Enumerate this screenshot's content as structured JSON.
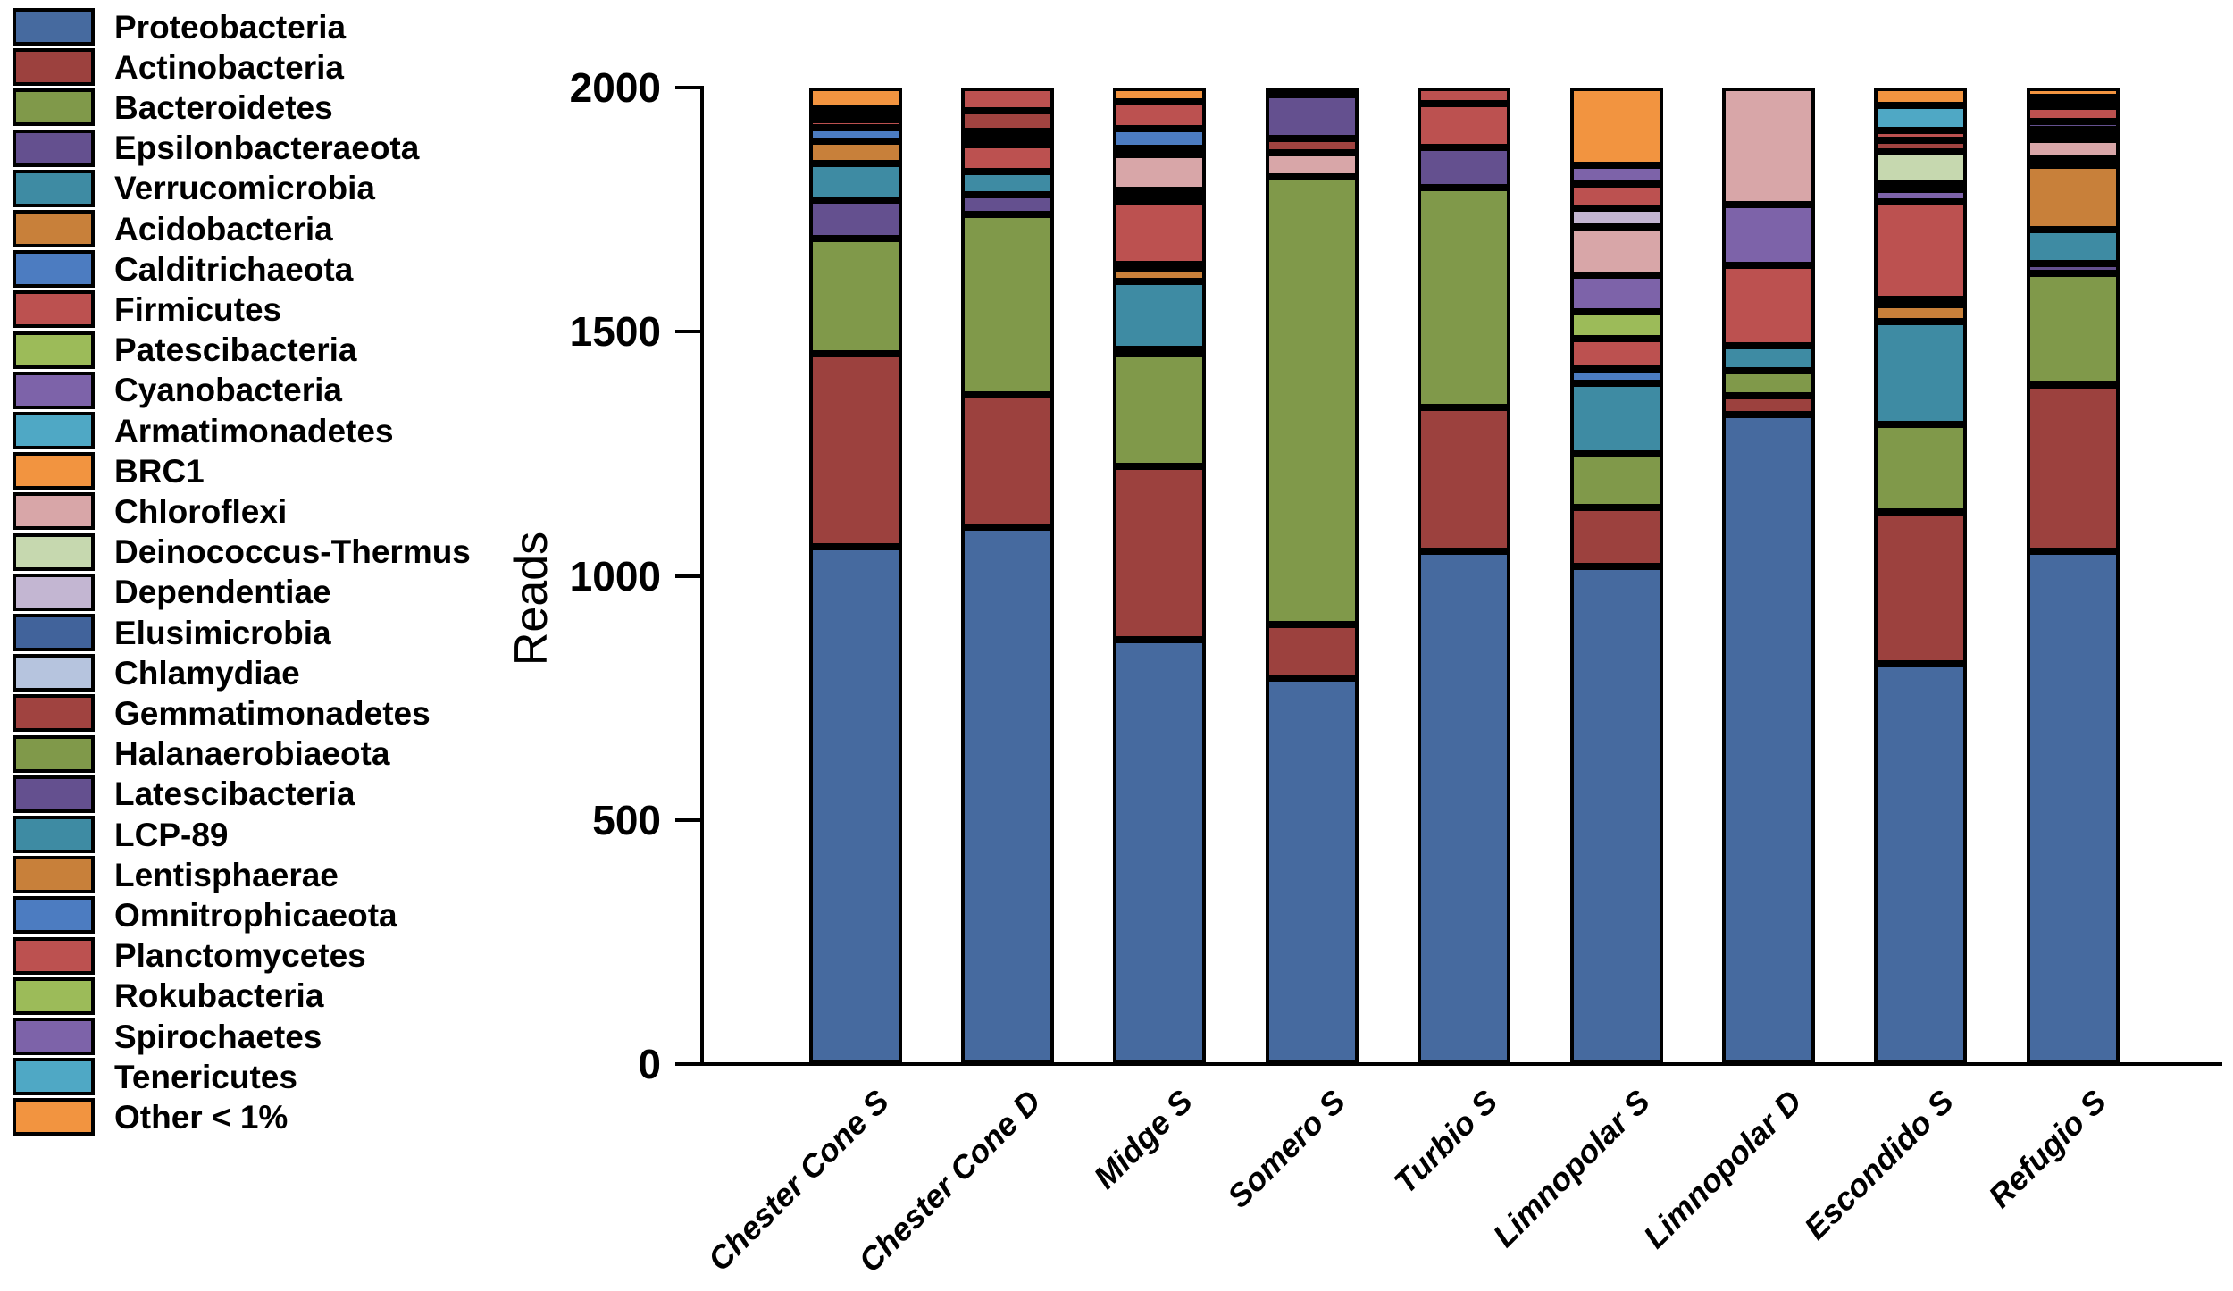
{
  "chart_data": {
    "type": "bar",
    "subtype": "stacked-vertical",
    "title": "",
    "xlabel": "",
    "ylabel": "Reads",
    "ylim": [
      0,
      2000
    ],
    "yticks": [
      0,
      500,
      1000,
      1500,
      2000
    ],
    "grid": false,
    "legend_position": "left",
    "bar_total": 2000,
    "categories": [
      "Chester Cone S",
      "Chester Cone D",
      "Midge S",
      "Somero S",
      "Turbio S",
      "Limnopolar S",
      "Limnopolar D",
      "Escondido S",
      "Refugio S"
    ],
    "series": [
      {
        "name": "Proteobacteria",
        "color": "#466a9f",
        "values": [
          1060,
          1100,
          870,
          790,
          1050,
          1020,
          1330,
          820,
          1050
        ]
      },
      {
        "name": "Actinobacteria",
        "color": "#9c413e",
        "values": [
          395,
          270,
          355,
          110,
          295,
          120,
          38,
          310,
          340
        ]
      },
      {
        "name": "Bacteroidetes",
        "color": "#80994a",
        "values": [
          235,
          370,
          230,
          917,
          450,
          110,
          52,
          180,
          230
        ]
      },
      {
        "name": "Epsilonbacteraeota",
        "color": "#64508f",
        "values": [
          80,
          40,
          8,
          0,
          82,
          0,
          0,
          0,
          20
        ]
      },
      {
        "name": "Verrucomicrobia",
        "color": "#3e8ba3",
        "values": [
          75,
          48,
          140,
          0,
          0,
          145,
          52,
          210,
          70
        ]
      },
      {
        "name": "Acidobacteria",
        "color": "#c8803a",
        "values": [
          46,
          0,
          25,
          0,
          0,
          0,
          0,
          36,
          130
        ]
      },
      {
        "name": "Calditrichaeota",
        "color": "#4c7cc1",
        "values": [
          26,
          0,
          10,
          0,
          0,
          28,
          0,
          10,
          0
        ]
      },
      {
        "name": "Firmicutes",
        "color": "#bc5150",
        "values": [
          18,
          55,
          128,
          0,
          90,
          62,
          163,
          200,
          14
        ]
      },
      {
        "name": "Patescibacteria",
        "color": "#9cbb59",
        "values": [
          13,
          0,
          0,
          0,
          0,
          55,
          0,
          0,
          0
        ]
      },
      {
        "name": "Cyanobacteria",
        "color": "#7d63a9",
        "values": [
          8,
          0,
          0,
          0,
          0,
          75,
          125,
          26,
          0
        ]
      },
      {
        "name": "Armatimonadetes",
        "color": "#4fa8c5",
        "values": [
          0,
          0,
          12,
          0,
          0,
          0,
          0,
          0,
          0
        ]
      },
      {
        "name": "BRC1",
        "color": "#f29440",
        "values": [
          0,
          10,
          12,
          0,
          0,
          0,
          0,
          0,
          0
        ]
      },
      {
        "name": "Chloroflexi",
        "color": "#d8a6a8",
        "values": [
          0,
          8,
          72,
          50,
          0,
          100,
          240,
          12,
          40
        ]
      },
      {
        "name": "Deinococcus-Thermus",
        "color": "#c6d8af",
        "values": [
          0,
          10,
          0,
          0,
          0,
          0,
          0,
          64,
          0
        ]
      },
      {
        "name": "Dependentiae",
        "color": "#c3b6d2",
        "values": [
          0,
          0,
          0,
          0,
          0,
          38,
          0,
          0,
          0
        ]
      },
      {
        "name": "Elusimicrobia",
        "color": "#41639b",
        "values": [
          0,
          0,
          0,
          0,
          0,
          0,
          0,
          0,
          10
        ]
      },
      {
        "name": "Chlamydiae",
        "color": "#b6c4de",
        "values": [
          0,
          0,
          0,
          0,
          0,
          0,
          0,
          0,
          0
        ]
      },
      {
        "name": "Gemmatimonadetes",
        "color": "#a04340",
        "values": [
          0,
          42,
          0,
          28,
          0,
          0,
          0,
          24,
          10
        ]
      },
      {
        "name": "Halanaerobiaeota",
        "color": "#80994a",
        "values": [
          0,
          0,
          0,
          0,
          0,
          0,
          0,
          0,
          0
        ]
      },
      {
        "name": "Latescibacteria",
        "color": "#64508f",
        "values": [
          0,
          0,
          0,
          90,
          0,
          0,
          0,
          0,
          16
        ]
      },
      {
        "name": "LCP-89",
        "color": "#3e8ba3",
        "values": [
          0,
          0,
          0,
          0,
          0,
          0,
          0,
          0,
          0
        ]
      },
      {
        "name": "Lentisphaerae",
        "color": "#c8803a",
        "values": [
          0,
          0,
          14,
          0,
          0,
          0,
          0,
          0,
          0
        ]
      },
      {
        "name": "Omnitrophicaeota",
        "color": "#4c7cc1",
        "values": [
          0,
          0,
          40,
          0,
          0,
          0,
          0,
          0,
          0
        ]
      },
      {
        "name": "Planctomycetes",
        "color": "#bc5150",
        "values": [
          0,
          47,
          55,
          15,
          33,
          50,
          0,
          20,
          32
        ]
      },
      {
        "name": "Rokubacteria",
        "color": "#9cbb59",
        "values": [
          0,
          0,
          0,
          0,
          0,
          0,
          0,
          0,
          0
        ]
      },
      {
        "name": "Spirochaetes",
        "color": "#7d63a9",
        "values": [
          0,
          0,
          0,
          0,
          0,
          37,
          0,
          0,
          6
        ]
      },
      {
        "name": "Tenericutes",
        "color": "#4fa8c5",
        "values": [
          0,
          0,
          0,
          0,
          0,
          0,
          0,
          52,
          12
        ]
      },
      {
        "name": "Other < 1%",
        "color": "#f29440",
        "values": [
          44,
          0,
          29,
          0,
          0,
          160,
          0,
          36,
          20
        ]
      }
    ]
  }
}
